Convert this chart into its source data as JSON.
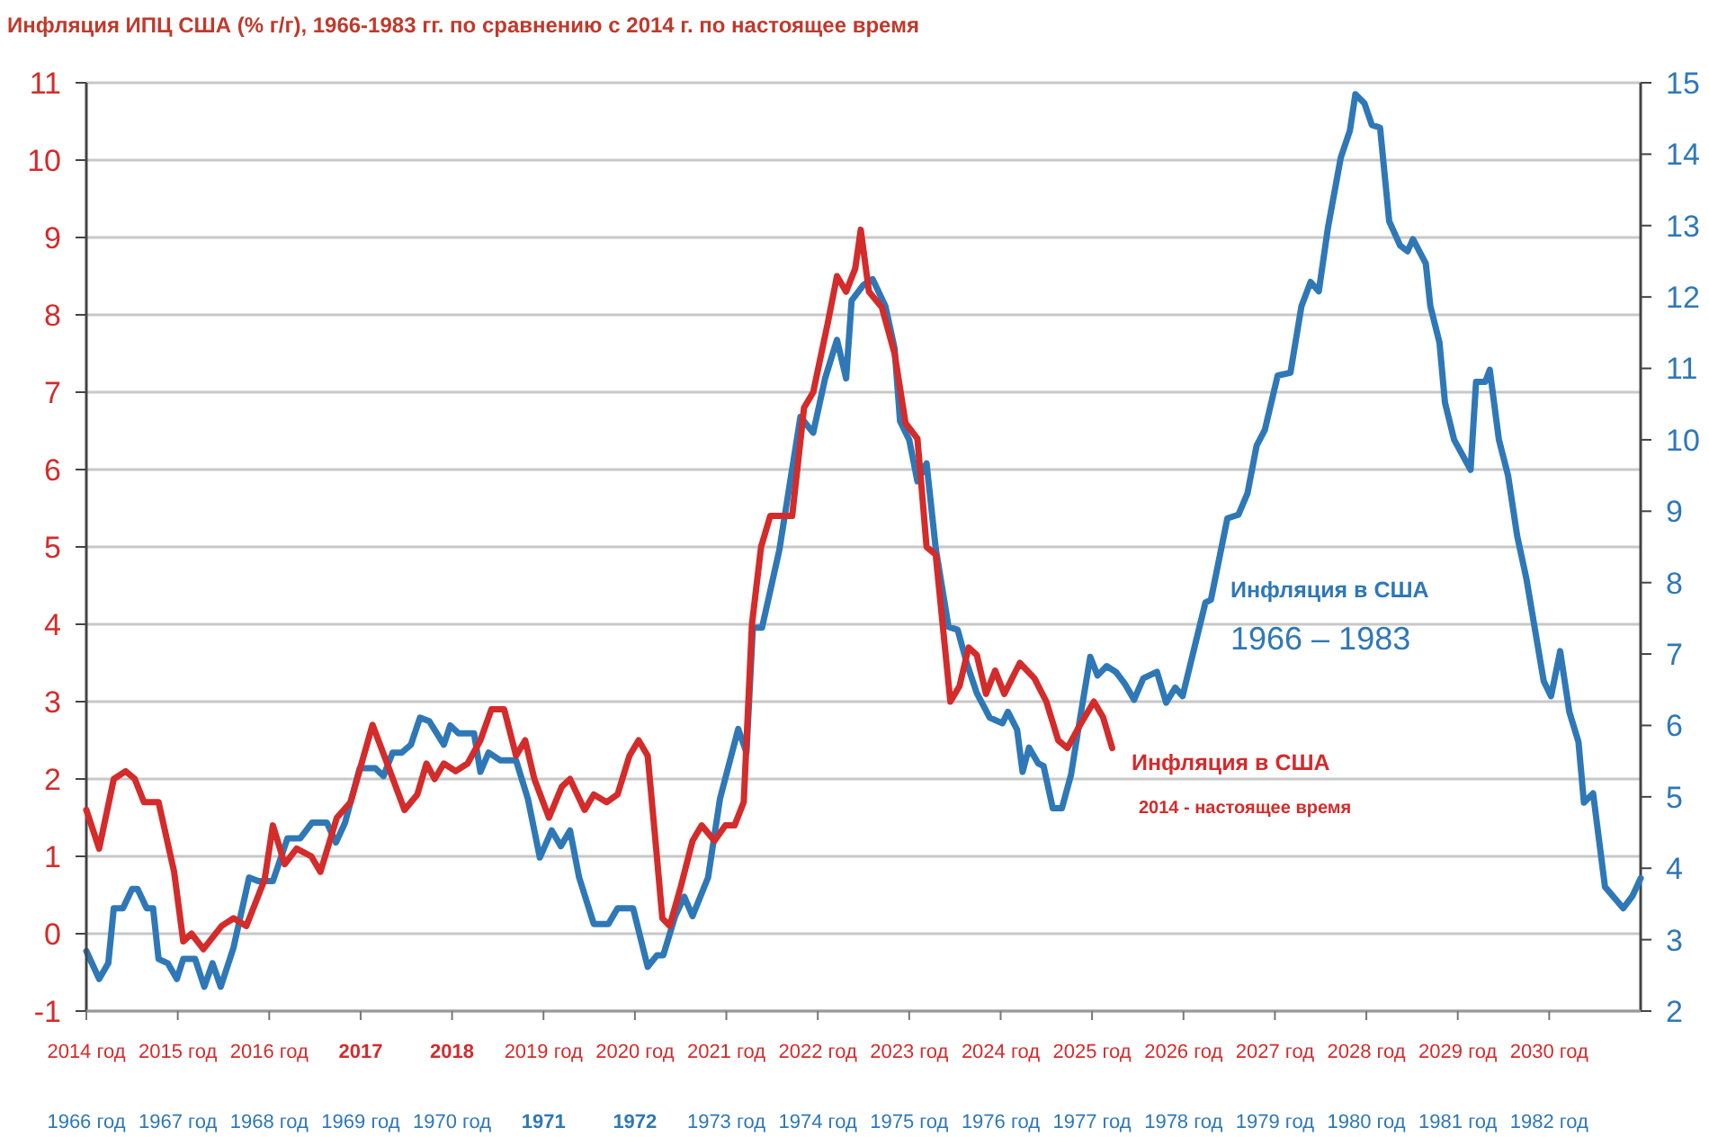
{
  "chart_data": [
    {
      "type": "line",
      "title": "Инфляция ИПЦ США (% г/г), 1966-1983 гг. по сравнению с 2014 г. по настоящее время",
      "annotations": [
        "2014 - настоящее время"
      ],
      "xlim": [
        2014,
        2031
      ],
      "xticks": [
        {
          "value": 2014,
          "label": "2014 год"
        },
        {
          "value": 2015,
          "label": "2015 год"
        },
        {
          "value": 2016,
          "label": "2016 год"
        },
        {
          "value": 2017,
          "label": "2017"
        },
        {
          "value": 2018,
          "label": "2018"
        },
        {
          "value": 2019,
          "label": "2019 год"
        },
        {
          "value": 2020,
          "label": "2020 год"
        },
        {
          "value": 2021,
          "label": "2021 год"
        },
        {
          "value": 2022,
          "label": "2022 год"
        },
        {
          "value": 2023,
          "label": "2023 год"
        },
        {
          "value": 2024,
          "label": "2024 год"
        },
        {
          "value": 2025,
          "label": "2025 год"
        },
        {
          "value": 2026,
          "label": "2026 год"
        },
        {
          "value": 2027,
          "label": "2027 год"
        },
        {
          "value": 2028,
          "label": "2028 год"
        },
        {
          "value": 2029,
          "label": "2029 год"
        },
        {
          "value": 2030,
          "label": "2030 год"
        }
      ],
      "ylim": [
        -1,
        11
      ],
      "yticks": [
        -1,
        0,
        1,
        2,
        3,
        4,
        5,
        6,
        7,
        8,
        9,
        10,
        11
      ],
      "grid": "y",
      "marker": "none",
      "line_style": "solid",
      "series": [
        {
          "name": "Инфляция в США",
          "color": "#d42b2b",
          "x": [
            2014.0,
            2014.14,
            2014.3,
            2014.43,
            2014.53,
            2014.63,
            2014.79,
            2014.96,
            2015.06,
            2015.15,
            2015.28,
            2015.48,
            2015.61,
            2015.75,
            2015.95,
            2016.04,
            2016.17,
            2016.3,
            2016.46,
            2016.56,
            2016.74,
            2016.89,
            2017.13,
            2017.29,
            2017.48,
            2017.62,
            2017.72,
            2017.81,
            2017.91,
            2018.04,
            2018.17,
            2018.31,
            2018.43,
            2018.57,
            2018.7,
            2018.8,
            2018.9,
            2019.06,
            2019.2,
            2019.29,
            2019.45,
            2019.55,
            2019.69,
            2019.81,
            2019.94,
            2020.04,
            2020.14,
            2020.24,
            2020.3,
            2020.38,
            2020.5,
            2020.63,
            2020.73,
            2020.87,
            2020.99,
            2021.09,
            2021.19,
            2021.28,
            2021.38,
            2021.48,
            2021.62,
            2021.72,
            2021.85,
            2021.95,
            2022.11,
            2022.21,
            2022.31,
            2022.41,
            2022.47,
            2022.56,
            2022.7,
            2022.84,
            2022.96,
            2023.09,
            2023.19,
            2023.29,
            2023.45,
            2023.55,
            2023.65,
            2023.74,
            2023.84,
            2023.94,
            2024.04,
            2024.21,
            2024.37,
            2024.5,
            2024.63,
            2024.73,
            2024.87,
            2025.02,
            2025.12,
            2025.22
          ],
          "values": [
            1.6,
            1.1,
            2.0,
            2.1,
            2.0,
            1.7,
            1.7,
            0.8,
            -0.1,
            0.0,
            -0.2,
            0.1,
            0.2,
            0.1,
            0.7,
            1.4,
            0.9,
            1.1,
            1.0,
            0.8,
            1.5,
            1.7,
            2.7,
            2.2,
            1.6,
            1.8,
            2.2,
            2.0,
            2.2,
            2.1,
            2.2,
            2.5,
            2.9,
            2.9,
            2.3,
            2.5,
            2.0,
            1.5,
            1.9,
            2.0,
            1.6,
            1.8,
            1.7,
            1.8,
            2.3,
            2.5,
            2.3,
            1.0,
            0.2,
            0.1,
            0.6,
            1.2,
            1.4,
            1.2,
            1.4,
            1.4,
            1.7,
            4.0,
            5.0,
            5.4,
            5.4,
            5.4,
            6.8,
            7.0,
            7.9,
            8.5,
            8.3,
            8.6,
            9.1,
            8.3,
            8.1,
            7.5,
            6.6,
            6.4,
            5.0,
            4.9,
            3.0,
            3.2,
            3.7,
            3.6,
            3.1,
            3.4,
            3.1,
            3.5,
            3.3,
            3.0,
            2.5,
            2.4,
            2.7,
            3.0,
            2.8,
            2.4
          ]
        }
      ]
    },
    {
      "type": "line",
      "annotations": [
        "1966 – 1983"
      ],
      "xlim": [
        1966,
        1983
      ],
      "xticks": [
        {
          "value": 1966,
          "label": "1966 год"
        },
        {
          "value": 1967,
          "label": "1967 год"
        },
        {
          "value": 1968,
          "label": "1968 год"
        },
        {
          "value": 1969,
          "label": "1969 год"
        },
        {
          "value": 1970,
          "label": "1970 год"
        },
        {
          "value": 1971,
          "label": "1971"
        },
        {
          "value": 1972,
          "label": "1972"
        },
        {
          "value": 1973,
          "label": "1973 год"
        },
        {
          "value": 1974,
          "label": "1974 год"
        },
        {
          "value": 1975,
          "label": "1975 год"
        },
        {
          "value": 1976,
          "label": "1976 год"
        },
        {
          "value": 1977,
          "label": "1977 год"
        },
        {
          "value": 1978,
          "label": "1978 год"
        },
        {
          "value": 1979,
          "label": "1979 год"
        },
        {
          "value": 1980,
          "label": "1980 год"
        },
        {
          "value": 1981,
          "label": "1981 год"
        },
        {
          "value": 1982,
          "label": "1982 год"
        }
      ],
      "ylim": [
        2,
        15
      ],
      "yticks": [
        2,
        3,
        4,
        5,
        6,
        7,
        8,
        9,
        10,
        11,
        12,
        13,
        14,
        15
      ],
      "marker": "none",
      "line_style": "solid",
      "series": [
        {
          "name": "Инфляция в США",
          "color": "#2f78b7",
          "x": [
            1966.0,
            1966.14,
            1966.24,
            1966.3,
            1966.4,
            1966.5,
            1966.56,
            1966.66,
            1966.73,
            1966.79,
            1966.89,
            1966.99,
            1967.06,
            1967.19,
            1967.29,
            1967.38,
            1967.47,
            1967.61,
            1967.78,
            1967.88,
            1968.04,
            1968.2,
            1968.34,
            1968.47,
            1968.63,
            1968.73,
            1968.83,
            1968.99,
            1969.16,
            1969.25,
            1969.35,
            1969.45,
            1969.55,
            1969.65,
            1969.75,
            1969.91,
            1969.98,
            1970.07,
            1970.24,
            1970.31,
            1970.4,
            1970.53,
            1970.7,
            1970.83,
            1970.96,
            1971.09,
            1971.19,
            1971.29,
            1971.39,
            1971.55,
            1971.71,
            1971.81,
            1971.98,
            1972.14,
            1972.24,
            1972.31,
            1972.44,
            1972.54,
            1972.63,
            1972.8,
            1972.93,
            1973.13,
            1973.22,
            1973.29,
            1973.39,
            1973.58,
            1973.81,
            1973.95,
            1974.08,
            1974.21,
            1974.31,
            1974.37,
            1974.5,
            1974.6,
            1974.74,
            1974.84,
            1974.9,
            1975.0,
            1975.09,
            1975.19,
            1975.29,
            1975.43,
            1975.53,
            1975.63,
            1975.74,
            1975.88,
            1976.02,
            1976.08,
            1976.18,
            1976.24,
            1976.31,
            1976.41,
            1976.47,
            1976.57,
            1976.67,
            1976.77,
            1976.87,
            1976.98,
            1977.06,
            1977.16,
            1977.26,
            1977.36,
            1977.46,
            1977.56,
            1977.71,
            1977.81,
            1977.91,
            1977.99,
            1978.11,
            1978.24,
            1978.3,
            1978.48,
            1978.6,
            1978.7,
            1978.8,
            1978.89,
            1979.03,
            1979.17,
            1979.29,
            1979.39,
            1979.48,
            1979.58,
            1979.72,
            1979.82,
            1979.88,
            1979.98,
            1980.06,
            1980.15,
            1980.25,
            1980.37,
            1980.45,
            1980.51,
            1980.65,
            1980.7,
            1980.8,
            1980.86,
            1980.96,
            1981.14,
            1981.2,
            1981.3,
            1981.35,
            1981.45,
            1981.55,
            1981.65,
            1981.75,
            1981.85,
            1981.94,
            1982.02,
            1982.12,
            1982.22,
            1982.32,
            1982.38,
            1982.48,
            1982.61,
            1982.81,
            1982.91,
            1983.0
          ],
          "values": [
            2.84,
            2.45,
            2.67,
            3.44,
            3.44,
            3.71,
            3.71,
            3.44,
            3.44,
            2.73,
            2.67,
            2.45,
            2.73,
            2.73,
            2.34,
            2.67,
            2.34,
            2.89,
            3.87,
            3.82,
            3.82,
            4.42,
            4.42,
            4.64,
            4.64,
            4.36,
            4.64,
            5.4,
            5.4,
            5.29,
            5.62,
            5.62,
            5.73,
            6.11,
            6.06,
            5.73,
            6.0,
            5.89,
            5.89,
            5.35,
            5.62,
            5.51,
            5.51,
            4.97,
            4.15,
            4.53,
            4.31,
            4.53,
            3.87,
            3.22,
            3.22,
            3.44,
            3.44,
            2.62,
            2.78,
            2.78,
            3.33,
            3.6,
            3.33,
            3.87,
            4.97,
            5.95,
            5.62,
            7.37,
            7.37,
            8.46,
            10.32,
            10.1,
            10.86,
            11.4,
            10.86,
            11.95,
            12.17,
            12.25,
            11.87,
            11.28,
            10.26,
            10.0,
            9.42,
            9.67,
            8.48,
            7.38,
            7.34,
            6.87,
            6.45,
            6.11,
            6.03,
            6.19,
            5.94,
            5.35,
            5.69,
            5.47,
            5.43,
            4.84,
            4.84,
            5.31,
            6.11,
            6.96,
            6.7,
            6.83,
            6.75,
            6.58,
            6.36,
            6.66,
            6.75,
            6.32,
            6.53,
            6.41,
            7.04,
            7.72,
            7.76,
            8.9,
            8.95,
            9.25,
            9.92,
            10.14,
            10.9,
            10.94,
            11.87,
            12.21,
            12.08,
            12.97,
            13.95,
            14.33,
            14.84,
            14.71,
            14.41,
            14.37,
            13.06,
            12.72,
            12.64,
            12.81,
            12.47,
            11.87,
            11.36,
            10.52,
            10.0,
            9.58,
            10.81,
            10.81,
            10.98,
            10.0,
            9.5,
            8.65,
            8.06,
            7.3,
            6.62,
            6.41,
            7.04,
            6.19,
            5.77,
            4.92,
            5.05,
            3.74,
            3.44,
            3.61,
            3.86
          ]
        }
      ]
    }
  ]
}
